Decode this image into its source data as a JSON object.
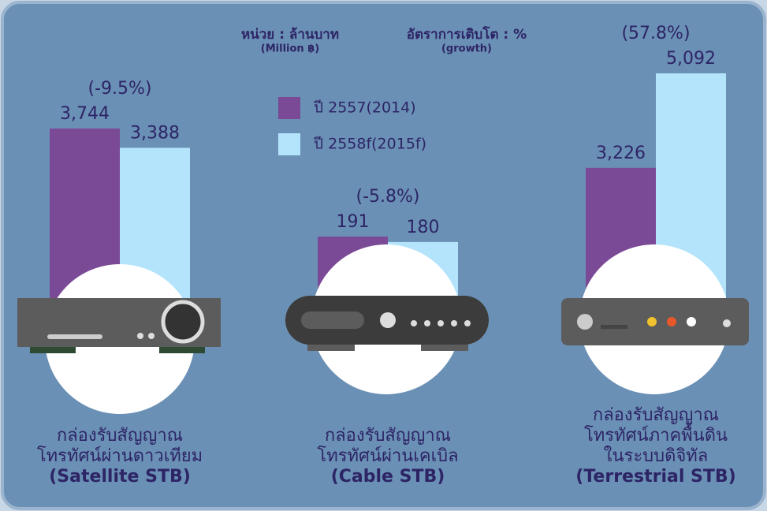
{
  "chart_data": {
    "type": "bar",
    "unit_label": "หน่วย : ล้านบาท",
    "unit_sublabel": "(Million ฿)",
    "growth_label": "อัตราการเติบโต : %",
    "growth_sublabel": "(growth)",
    "categories": [
      [
        "กล่องรับสัญญาณ",
        "โทรทัศน์ผ่านดาวเทียม",
        "(Satellite STB)"
      ],
      [
        "กล่องรับสัญญาณ",
        "โทรทัศน์ผ่านเคเบิล",
        "(Cable STB)"
      ],
      [
        "กล่องรับสัญญาณ",
        "โทรทัศน์ภาคพื้นดิน",
        "ในระบบดิจิทัล",
        "(Terrestrial STB)"
      ]
    ],
    "series": [
      {
        "name": "ปี 2557(2014)",
        "color": "#7b4a96",
        "values": [
          3744,
          191,
          3226
        ],
        "value_labels": [
          "3,744",
          "191",
          "3,226"
        ]
      },
      {
        "name": "ปี 2558f(2015f)",
        "color": "#b3e4fb",
        "values": [
          3388,
          180,
          5092
        ],
        "value_labels": [
          "3,388",
          "180",
          "5,092"
        ]
      }
    ],
    "growth": [
      {
        "value": -9.5,
        "label": "(-9.5%)"
      },
      {
        "value": -5.8,
        "label": "(-5.8%)"
      },
      {
        "value": 57.8,
        "label": "(57.8%)"
      }
    ]
  }
}
